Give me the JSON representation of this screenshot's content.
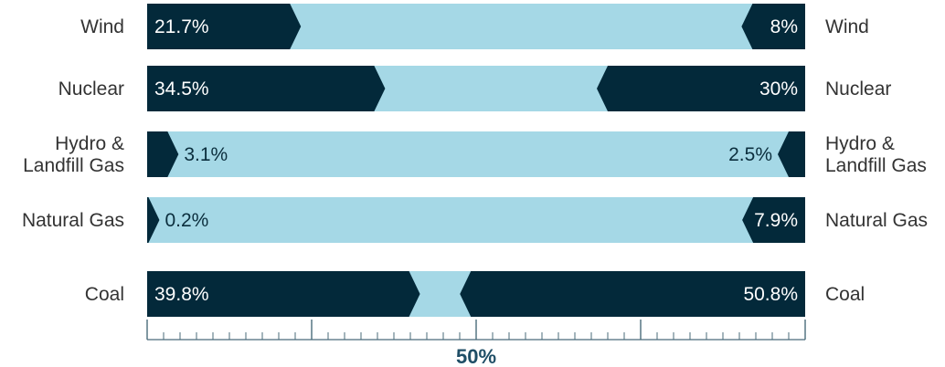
{
  "chart_data": {
    "type": "bar",
    "subtype": "butterfly-comparison",
    "categories": [
      "Wind",
      "Nuclear",
      "Hydro &\nLandfill Gas",
      "Natural Gas",
      "Coal"
    ],
    "series": [
      {
        "values": [
          21.7,
          34.5,
          3.1,
          0.2,
          39.8
        ]
      },
      {
        "values": [
          8,
          30,
          2.5,
          7.9,
          50.8
        ]
      }
    ],
    "value_labels_left": [
      "21.7%",
      "34.5%",
      "3.1%",
      "0.2%",
      "39.8%"
    ],
    "value_labels_right": [
      "8%",
      "30%",
      "2.5%",
      "7.9%",
      "50.8%"
    ],
    "xlim": [
      0,
      100
    ],
    "axis_center_label": "50%",
    "colors": {
      "dark": "#03293a",
      "light": "#a5d8e6",
      "axis": "#4a6b7a",
      "center_label": "#1f4e66"
    }
  }
}
